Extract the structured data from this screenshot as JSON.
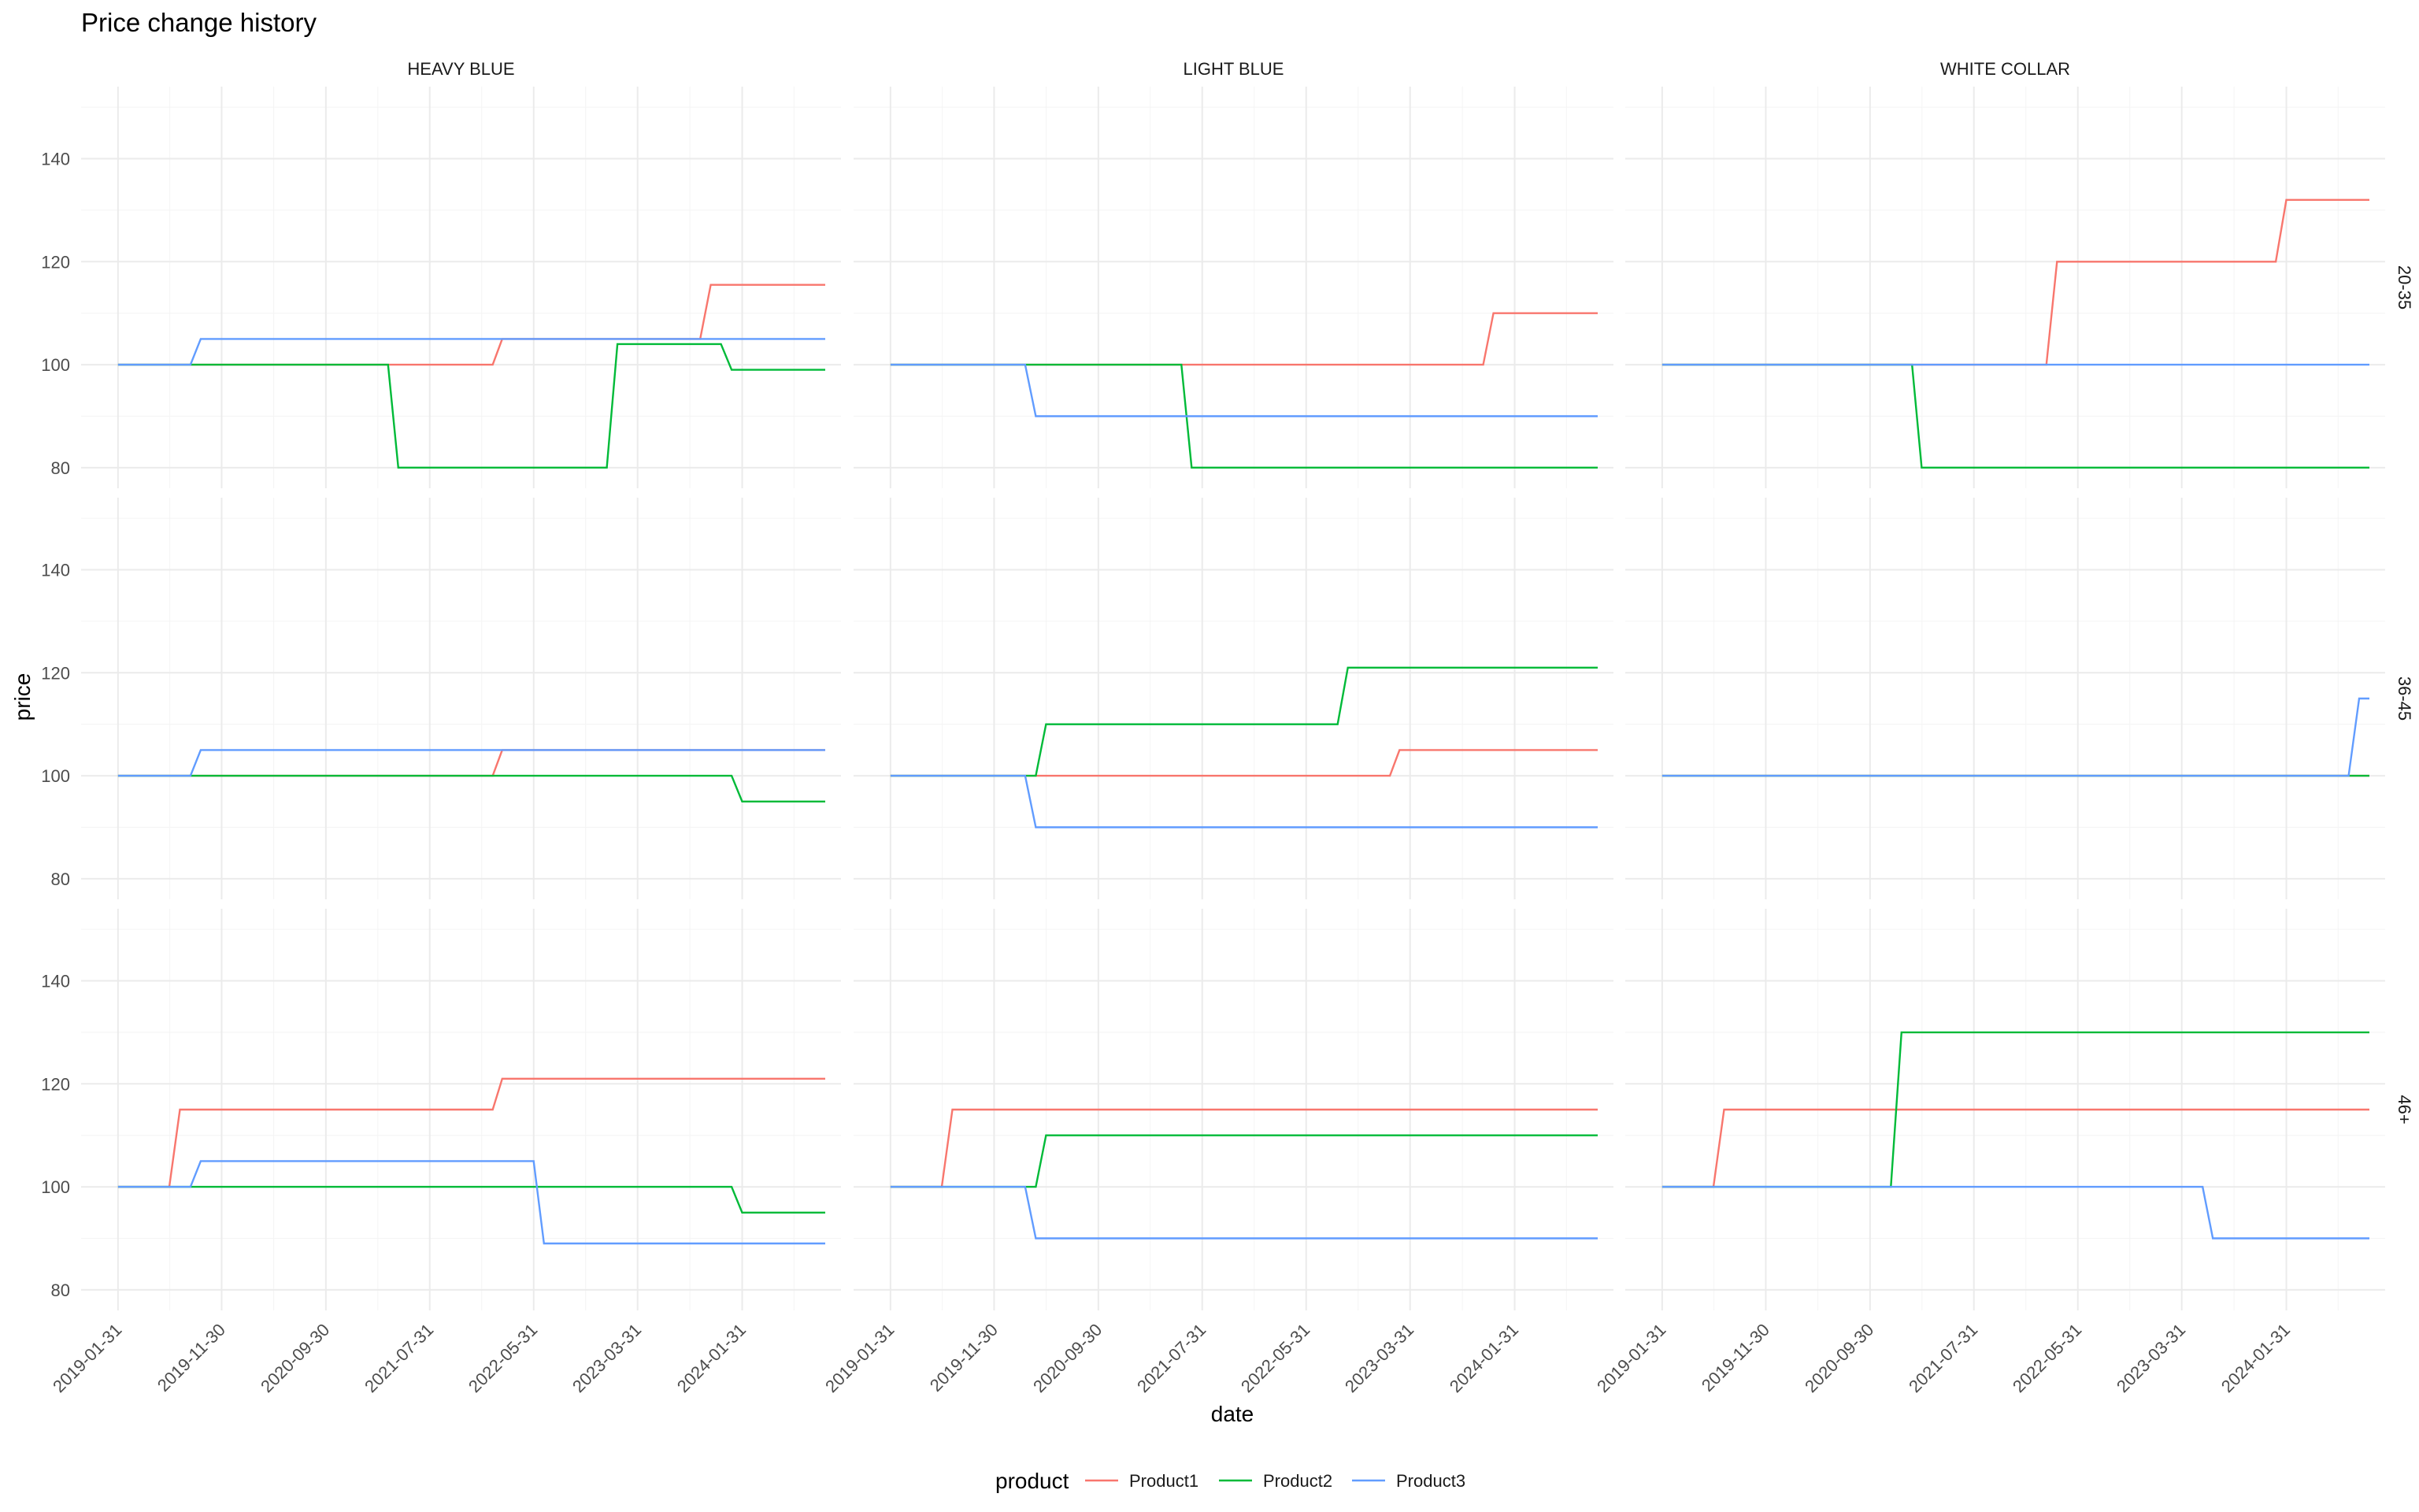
{
  "chart_data": {
    "type": "line",
    "title": "Price change history",
    "xlabel": "date",
    "ylabel": "price",
    "ylim": [
      76,
      154
    ],
    "yticks": [
      80,
      100,
      120,
      140
    ],
    "x_ticks": [
      "2019-01-31",
      "2019-11-30",
      "2020-09-30",
      "2021-07-31",
      "2022-05-31",
      "2023-03-31",
      "2024-01-31"
    ],
    "x_range": [
      "2018-10-15",
      "2024-11-15"
    ],
    "grid": true,
    "legend": {
      "title": "product",
      "placement": "bottom",
      "entries": [
        "Product1",
        "Product2",
        "Product3"
      ]
    },
    "colors": {
      "Product1": "#F8766D",
      "Product2": "#00BA38",
      "Product3": "#619CFF"
    },
    "facet_cols": [
      "HEAVY BLUE",
      "LIGHT BLUE",
      "WHITE COLLAR"
    ],
    "facet_rows": [
      "20-35",
      "36-45",
      "46+"
    ],
    "panels": [
      {
        "row": "20-35",
        "col": "HEAVY BLUE",
        "series": [
          {
            "name": "Product1",
            "points": [
              [
                "2019-01-31",
                100
              ],
              [
                "2019-08-31",
                100
              ],
              [
                "2019-09-30",
                100
              ],
              [
                "2021-03-31",
                100
              ],
              [
                "2021-04-30",
                100
              ],
              [
                "2022-01-31",
                100
              ],
              [
                "2022-02-28",
                105
              ],
              [
                "2023-09-30",
                105
              ],
              [
                "2023-10-31",
                115.5
              ],
              [
                "2024-09-30",
                115.5
              ]
            ]
          },
          {
            "name": "Product2",
            "points": [
              [
                "2019-01-31",
                100
              ],
              [
                "2021-03-31",
                100
              ],
              [
                "2021-04-30",
                80
              ],
              [
                "2022-12-31",
                80
              ],
              [
                "2023-01-31",
                104
              ],
              [
                "2023-11-30",
                104
              ],
              [
                "2023-12-31",
                99
              ],
              [
                "2024-09-30",
                99
              ]
            ]
          },
          {
            "name": "Product3",
            "points": [
              [
                "2019-01-31",
                100
              ],
              [
                "2019-08-31",
                100
              ],
              [
                "2019-09-30",
                105
              ],
              [
                "2024-09-30",
                105
              ]
            ]
          }
        ]
      },
      {
        "row": "20-35",
        "col": "LIGHT BLUE",
        "series": [
          {
            "name": "Product1",
            "points": [
              [
                "2019-01-31",
                100
              ],
              [
                "2023-10-31",
                100
              ],
              [
                "2023-11-30",
                110
              ],
              [
                "2024-09-30",
                110
              ]
            ]
          },
          {
            "name": "Product2",
            "points": [
              [
                "2019-01-31",
                100
              ],
              [
                "2021-05-31",
                100
              ],
              [
                "2021-06-30",
                80
              ],
              [
                "2024-09-30",
                80
              ]
            ]
          },
          {
            "name": "Product3",
            "points": [
              [
                "2019-01-31",
                100
              ],
              [
                "2020-02-29",
                100
              ],
              [
                "2020-03-31",
                90
              ],
              [
                "2024-09-30",
                90
              ]
            ]
          }
        ]
      },
      {
        "row": "20-35",
        "col": "WHITE COLLAR",
        "series": [
          {
            "name": "Product1",
            "points": [
              [
                "2019-01-31",
                100
              ],
              [
                "2022-02-28",
                100
              ],
              [
                "2022-03-31",
                120
              ],
              [
                "2023-12-31",
                120
              ],
              [
                "2024-01-31",
                132
              ],
              [
                "2024-09-30",
                132
              ]
            ]
          },
          {
            "name": "Product2",
            "points": [
              [
                "2019-01-31",
                100
              ],
              [
                "2021-01-31",
                100
              ],
              [
                "2021-02-28",
                80
              ],
              [
                "2024-09-30",
                80
              ]
            ]
          },
          {
            "name": "Product3",
            "points": [
              [
                "2019-01-31",
                100
              ],
              [
                "2024-09-30",
                100
              ]
            ]
          }
        ]
      },
      {
        "row": "36-45",
        "col": "HEAVY BLUE",
        "series": [
          {
            "name": "Product1",
            "points": [
              [
                "2019-01-31",
                100
              ],
              [
                "2022-01-31",
                100
              ],
              [
                "2022-02-28",
                105
              ],
              [
                "2024-09-30",
                105
              ]
            ]
          },
          {
            "name": "Product2",
            "points": [
              [
                "2019-01-31",
                100
              ],
              [
                "2023-12-31",
                100
              ],
              [
                "2024-01-31",
                95
              ],
              [
                "2024-09-30",
                95
              ]
            ]
          },
          {
            "name": "Product3",
            "points": [
              [
                "2019-01-31",
                100
              ],
              [
                "2019-08-31",
                100
              ],
              [
                "2019-09-30",
                105
              ],
              [
                "2024-09-30",
                105
              ]
            ]
          }
        ]
      },
      {
        "row": "36-45",
        "col": "LIGHT BLUE",
        "series": [
          {
            "name": "Product1",
            "points": [
              [
                "2019-01-31",
                100
              ],
              [
                "2023-01-31",
                100
              ],
              [
                "2023-02-28",
                105
              ],
              [
                "2024-09-30",
                105
              ]
            ]
          },
          {
            "name": "Product2",
            "points": [
              [
                "2019-01-31",
                100
              ],
              [
                "2020-03-31",
                100
              ],
              [
                "2020-04-30",
                110
              ],
              [
                "2022-08-31",
                110
              ],
              [
                "2022-09-30",
                121
              ],
              [
                "2024-09-30",
                121
              ]
            ]
          },
          {
            "name": "Product3",
            "points": [
              [
                "2019-01-31",
                100
              ],
              [
                "2020-02-29",
                100
              ],
              [
                "2020-03-31",
                90
              ],
              [
                "2024-09-30",
                90
              ]
            ]
          }
        ]
      },
      {
        "row": "36-45",
        "col": "WHITE COLLAR",
        "series": [
          {
            "name": "Product1",
            "points": [
              [
                "2019-01-31",
                100
              ],
              [
                "2024-09-30",
                100
              ]
            ]
          },
          {
            "name": "Product2",
            "points": [
              [
                "2019-01-31",
                100
              ],
              [
                "2024-09-30",
                100
              ]
            ]
          },
          {
            "name": "Product3",
            "points": [
              [
                "2019-01-31",
                100
              ],
              [
                "2024-07-31",
                100
              ],
              [
                "2024-08-31",
                115
              ],
              [
                "2024-09-30",
                115
              ]
            ]
          }
        ]
      },
      {
        "row": "46+",
        "col": "HEAVY BLUE",
        "series": [
          {
            "name": "Product1",
            "points": [
              [
                "2019-01-31",
                100
              ],
              [
                "2019-06-30",
                100
              ],
              [
                "2019-07-31",
                115
              ],
              [
                "2022-01-31",
                115
              ],
              [
                "2022-02-28",
                121
              ],
              [
                "2024-09-30",
                121
              ]
            ]
          },
          {
            "name": "Product2",
            "points": [
              [
                "2019-01-31",
                100
              ],
              [
                "2023-12-31",
                100
              ],
              [
                "2024-01-31",
                95
              ],
              [
                "2024-09-30",
                95
              ]
            ]
          },
          {
            "name": "Product3",
            "points": [
              [
                "2019-01-31",
                100
              ],
              [
                "2019-08-31",
                100
              ],
              [
                "2019-09-30",
                105
              ],
              [
                "2022-05-31",
                105
              ],
              [
                "2022-06-30",
                89
              ],
              [
                "2024-09-30",
                89
              ]
            ]
          }
        ]
      },
      {
        "row": "46+",
        "col": "LIGHT BLUE",
        "series": [
          {
            "name": "Product1",
            "points": [
              [
                "2019-01-31",
                100
              ],
              [
                "2019-06-30",
                100
              ],
              [
                "2019-07-31",
                115
              ],
              [
                "2024-09-30",
                115
              ]
            ]
          },
          {
            "name": "Product2",
            "points": [
              [
                "2019-01-31",
                100
              ],
              [
                "2020-03-31",
                100
              ],
              [
                "2020-04-30",
                110
              ],
              [
                "2024-09-30",
                110
              ]
            ]
          },
          {
            "name": "Product3",
            "points": [
              [
                "2019-01-31",
                100
              ],
              [
                "2020-02-29",
                100
              ],
              [
                "2020-03-31",
                90
              ],
              [
                "2024-09-30",
                90
              ]
            ]
          }
        ]
      },
      {
        "row": "46+",
        "col": "WHITE COLLAR",
        "series": [
          {
            "name": "Product1",
            "points": [
              [
                "2019-01-31",
                100
              ],
              [
                "2019-06-30",
                100
              ],
              [
                "2019-07-31",
                115
              ],
              [
                "2024-09-30",
                115
              ]
            ]
          },
          {
            "name": "Product2",
            "points": [
              [
                "2019-01-31",
                100
              ],
              [
                "2020-11-30",
                100
              ],
              [
                "2020-12-31",
                130
              ],
              [
                "2024-09-30",
                130
              ]
            ]
          },
          {
            "name": "Product3",
            "points": [
              [
                "2019-01-31",
                100
              ],
              [
                "2023-05-31",
                100
              ],
              [
                "2023-06-30",
                90
              ],
              [
                "2024-09-30",
                90
              ]
            ]
          }
        ]
      }
    ]
  }
}
